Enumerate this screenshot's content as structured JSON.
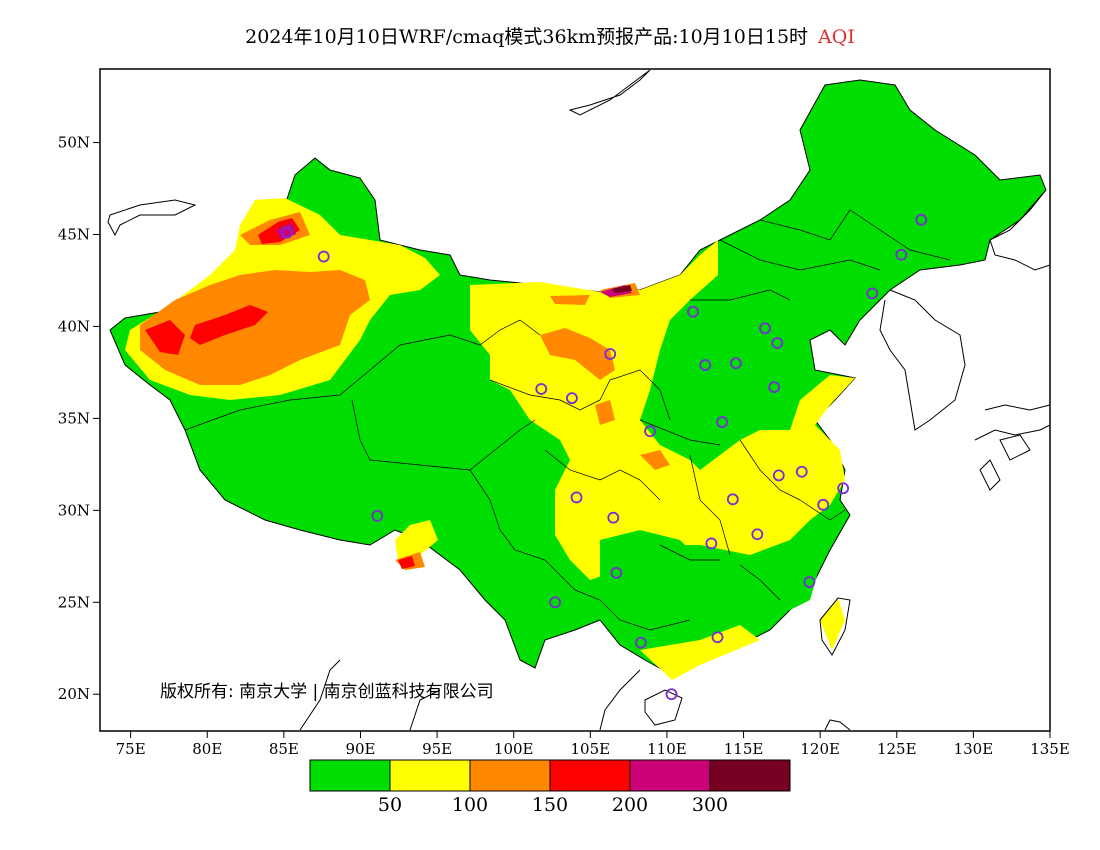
{
  "title": {
    "main": "2024年10月10日WRF/cmaq模式36km预报产品:10月10日15时",
    "variable": "AQI"
  },
  "axes": {
    "lon_ticks": [
      "75E",
      "80E",
      "85E",
      "90E",
      "95E",
      "100E",
      "105E",
      "110E",
      "115E",
      "120E",
      "125E",
      "130E",
      "135E"
    ],
    "lat_ticks": [
      "50N",
      "45N",
      "40N",
      "35N",
      "30N",
      "25N",
      "20N"
    ]
  },
  "copyright": "版权所有: 南京大学 | 南京创蓝科技有限公司",
  "legend": {
    "colors": [
      "#00dd00",
      "#ffff00",
      "#ff8800",
      "#ff0000",
      "#cc0077",
      "#770022"
    ],
    "labels": [
      "50",
      "100",
      "150",
      "200",
      "300"
    ]
  },
  "stations": [
    {
      "lon": 85.2,
      "lat": 45.1
    },
    {
      "lon": 87.6,
      "lat": 43.8
    },
    {
      "lon": 91.1,
      "lat": 29.7
    },
    {
      "lon": 101.8,
      "lat": 36.6
    },
    {
      "lon": 103.8,
      "lat": 36.1
    },
    {
      "lon": 106.3,
      "lat": 38.5
    },
    {
      "lon": 108.9,
      "lat": 34.3
    },
    {
      "lon": 104.1,
      "lat": 30.7
    },
    {
      "lon": 106.5,
      "lat": 29.6
    },
    {
      "lon": 106.7,
      "lat": 26.6
    },
    {
      "lon": 102.7,
      "lat": 25.0
    },
    {
      "lon": 108.3,
      "lat": 22.8
    },
    {
      "lon": 113.3,
      "lat": 23.1
    },
    {
      "lon": 110.3,
      "lat": 20.0
    },
    {
      "lon": 112.9,
      "lat": 28.2
    },
    {
      "lon": 114.3,
      "lat": 30.6
    },
    {
      "lon": 115.9,
      "lat": 28.7
    },
    {
      "lon": 117.3,
      "lat": 31.9
    },
    {
      "lon": 118.8,
      "lat": 32.1
    },
    {
      "lon": 120.2,
      "lat": 30.3
    },
    {
      "lon": 121.5,
      "lat": 31.2
    },
    {
      "lon": 119.3,
      "lat": 26.1
    },
    {
      "lon": 113.6,
      "lat": 34.8
    },
    {
      "lon": 117.0,
      "lat": 36.7
    },
    {
      "lon": 112.5,
      "lat": 37.9
    },
    {
      "lon": 114.5,
      "lat": 38.0
    },
    {
      "lon": 116.4,
      "lat": 39.9
    },
    {
      "lon": 117.2,
      "lat": 39.1
    },
    {
      "lon": 111.7,
      "lat": 40.8
    },
    {
      "lon": 123.4,
      "lat": 41.8
    },
    {
      "lon": 125.3,
      "lat": 43.9
    },
    {
      "lon": 126.6,
      "lat": 45.8
    }
  ]
}
